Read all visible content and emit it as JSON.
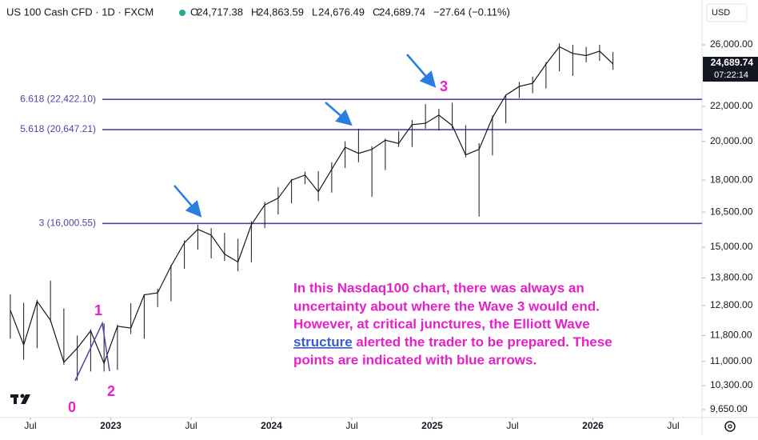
{
  "header": {
    "title": "US 100 Cash CFD · 1D · FXCM",
    "ohlc_keys": [
      "O",
      "H",
      "L",
      "C"
    ],
    "ohlc_values": [
      "24,717.38",
      "24,863.59",
      "24,676.49",
      "24,689.74"
    ],
    "change": "−27.64 (−0.11%)"
  },
  "chart_data": {
    "type": "line",
    "color": "#131722",
    "log_scale": true,
    "grid": false,
    "x": [
      "2022-05",
      "2022-06",
      "2022-07",
      "2022-08",
      "2022-09",
      "2022-10",
      "2022-11",
      "2022-12",
      "2023-01",
      "2023-02",
      "2023-03",
      "2023-04",
      "2023-05",
      "2023-06",
      "2023-07",
      "2023-08",
      "2023-09",
      "2023-10",
      "2023-11",
      "2023-12",
      "2024-01",
      "2024-02",
      "2024-03",
      "2024-04",
      "2024-05",
      "2024-06",
      "2024-07",
      "2024-08",
      "2024-09",
      "2024-10",
      "2024-11",
      "2024-12",
      "2025-01",
      "2025-02",
      "2025-03",
      "2025-04",
      "2025-05",
      "2025-06",
      "2025-07",
      "2025-08",
      "2025-09",
      "2025-10",
      "2025-11",
      "2025-12",
      "2026-01",
      "2026-02"
    ],
    "values": [
      12640,
      11500,
      12950,
      12300,
      10970,
      11400,
      11950,
      10940,
      12100,
      12040,
      13180,
      13250,
      14250,
      15180,
      15750,
      15500,
      14720,
      14410,
      15950,
      16830,
      17140,
      18000,
      18250,
      17440,
      18540,
      19680,
      19360,
      19570,
      20060,
      19890,
      20930,
      21010,
      21480,
      20880,
      19280,
      19570,
      21340,
      22680,
      23220,
      23420,
      24680,
      25860,
      25400,
      25250,
      25560,
      24690
    ],
    "high": [
      13200,
      12900,
      13000,
      13700,
      12700,
      11800,
      12000,
      12200,
      12150,
      12880,
      13200,
      13400,
      14300,
      15280,
      15950,
      15800,
      15600,
      15350,
      16100,
      16970,
      17660,
      18060,
      18420,
      18450,
      18900,
      20000,
      20700,
      19740,
      20150,
      20550,
      21200,
      22130,
      21850,
      22220,
      20900,
      19900,
      21450,
      22700,
      23500,
      23850,
      24800,
      26100,
      26000,
      25850,
      26000,
      25500
    ],
    "low": [
      11700,
      11050,
      11400,
      12250,
      10900,
      10440,
      10700,
      10700,
      10750,
      11850,
      11700,
      12750,
      12950,
      14150,
      14900,
      14550,
      14450,
      14050,
      14400,
      15800,
      16400,
      16900,
      17800,
      17000,
      17400,
      18600,
      18900,
      17200,
      18500,
      19700,
      19700,
      20700,
      20600,
      20700,
      19150,
      16300,
      19250,
      21000,
      22500,
      22800,
      23100,
      24200,
      23900,
      24800,
      24900,
      24300
    ],
    "ylim": [
      9440,
      29370
    ],
    "yticks": [
      {
        "value": 9650,
        "label": "9,650.00"
      },
      {
        "value": 10300,
        "label": "10,300.00"
      },
      {
        "value": 11000,
        "label": "11,000.00"
      },
      {
        "value": 11800,
        "label": "11,800.00"
      },
      {
        "value": 12800,
        "label": "12,800.00"
      },
      {
        "value": 13800,
        "label": "13,800.00"
      },
      {
        "value": 15000,
        "label": "15,000.00"
      },
      {
        "value": 16500,
        "label": "16,500.00"
      },
      {
        "value": 18000,
        "label": "18,000.00"
      },
      {
        "value": 20000,
        "label": "20,000.00"
      },
      {
        "value": 22000,
        "label": "22,000.00"
      },
      {
        "value": 26000,
        "label": "26,000.00"
      }
    ],
    "xticks": [
      {
        "value": "2022-07",
        "label": "Jul"
      },
      {
        "value": "2023-01",
        "label": "2023"
      },
      {
        "value": "2023-07",
        "label": "Jul"
      },
      {
        "value": "2024-01",
        "label": "2024"
      },
      {
        "value": "2024-07",
        "label": "Jul"
      },
      {
        "value": "2025-01",
        "label": "2025"
      },
      {
        "value": "2025-07",
        "label": "Jul"
      },
      {
        "value": "2026-01",
        "label": "2026"
      },
      {
        "value": "2026-07",
        "label": "Jul"
      }
    ],
    "levels": [
      {
        "value": 22422.1,
        "label": "6.618 (22,422.10)"
      },
      {
        "value": 20647.21,
        "label": "5.618 (20,647.21)"
      },
      {
        "value": 16000.55,
        "label": "3 (16,000.55)"
      }
    ],
    "level_color": "#5b3ea8",
    "currency": "USD",
    "last_price_label": "24,689.74",
    "countdown": "07:22:14",
    "wave_labels": [
      "0",
      "1",
      "2",
      "3"
    ],
    "annotation_lines": [
      "In this Nasdaq100 chart, there was always an",
      "uncertainty about where the Wave 3 would end.",
      "However, at critical junctures, the Elliott Wave",
      "points are indicated with blue arrows."
    ],
    "annotation_link": "structure",
    "annotation_link_rest": " alerted the trader to be prepared. These"
  }
}
